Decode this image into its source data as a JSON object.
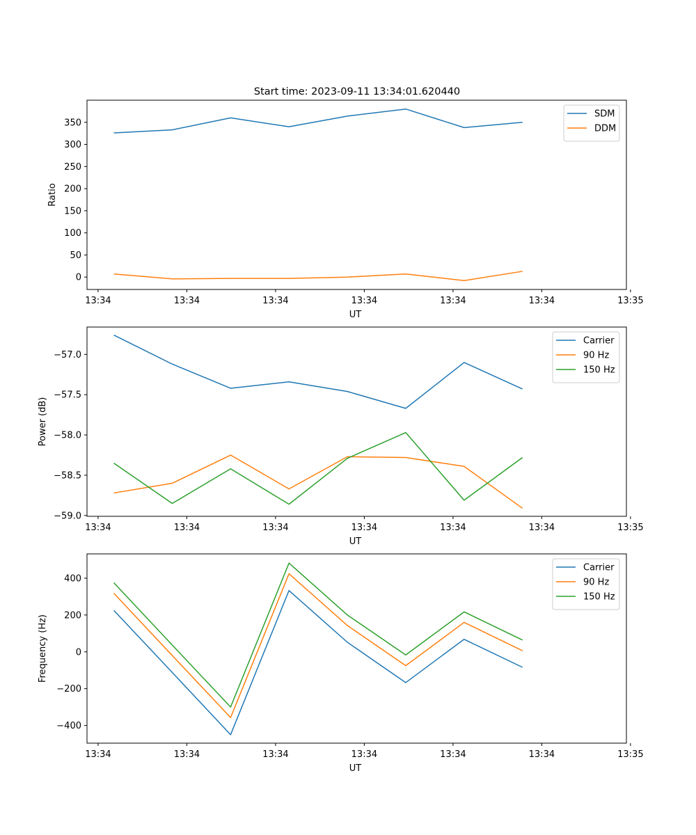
{
  "figure": {
    "title": "Start time: 2023-09-11 13:34:01.620440"
  },
  "colors": {
    "blue": "#1f77b4",
    "orange": "#ff7f0e",
    "green": "#2ca02c"
  },
  "chart_data": [
    {
      "type": "line",
      "xlabel": "UT",
      "ylabel": "Ratio",
      "xlim": [
        -0.46,
        8.78
      ],
      "ylim": [
        -28,
        400
      ],
      "xticks": [
        {
          "x": -0.27,
          "label": "13:34"
        },
        {
          "x": 1.25,
          "label": "13:34"
        },
        {
          "x": 2.77,
          "label": "13:34"
        },
        {
          "x": 4.29,
          "label": "13:34"
        },
        {
          "x": 5.81,
          "label": "13:34"
        },
        {
          "x": 7.33,
          "label": "13:34"
        },
        {
          "x": 8.85,
          "label": "13:35"
        }
      ],
      "yticks": [
        0,
        50,
        100,
        150,
        200,
        250,
        300,
        350
      ],
      "legend_loc": "top-right",
      "x": [
        0,
        1,
        2,
        3,
        4,
        5,
        6,
        7
      ],
      "series": [
        {
          "name": "SDM",
          "color": "blue",
          "values": [
            326,
            333,
            360,
            340,
            364,
            380,
            338,
            350
          ]
        },
        {
          "name": "DDM",
          "color": "orange",
          "values": [
            7,
            -4,
            -3,
            -3,
            0,
            7,
            -8,
            13
          ]
        }
      ]
    },
    {
      "type": "line",
      "xlabel": "UT",
      "ylabel": "Power (dB)",
      "xlim": [
        -0.46,
        8.78
      ],
      "ylim": [
        -59.01,
        -56.66
      ],
      "xticks": [
        {
          "x": -0.27,
          "label": "13:34"
        },
        {
          "x": 1.25,
          "label": "13:34"
        },
        {
          "x": 2.77,
          "label": "13:34"
        },
        {
          "x": 4.29,
          "label": "13:34"
        },
        {
          "x": 5.81,
          "label": "13:34"
        },
        {
          "x": 7.33,
          "label": "13:34"
        },
        {
          "x": 8.85,
          "label": "13:35"
        }
      ],
      "yticks": [
        -59.0,
        -58.5,
        -58.0,
        -57.5,
        -57.0
      ],
      "ytick_labels": [
        "−59.0",
        "−58.5",
        "−58.0",
        "−57.5",
        "−57.0"
      ],
      "legend_loc": "top-right",
      "x": [
        0,
        1,
        2,
        3,
        4,
        5,
        6,
        7
      ],
      "series": [
        {
          "name": "Carrier",
          "color": "blue",
          "values": [
            -56.76,
            -57.12,
            -57.42,
            -57.34,
            -57.46,
            -57.67,
            -57.1,
            -57.43
          ]
        },
        {
          "name": "90 Hz",
          "color": "orange",
          "values": [
            -58.72,
            -58.6,
            -58.25,
            -58.67,
            -58.27,
            -58.28,
            -58.39,
            -58.91
          ]
        },
        {
          "name": "150 Hz",
          "color": "green",
          "values": [
            -58.35,
            -58.85,
            -58.42,
            -58.86,
            -58.29,
            -57.97,
            -58.81,
            -58.28
          ]
        }
      ]
    },
    {
      "type": "line",
      "xlabel": "UT",
      "ylabel": "Frequency (Hz)",
      "xlim": [
        -0.46,
        8.78
      ],
      "ylim": [
        -496,
        532
      ],
      "xticks": [
        {
          "x": -0.27,
          "label": "13:34"
        },
        {
          "x": 1.25,
          "label": "13:34"
        },
        {
          "x": 2.77,
          "label": "13:34"
        },
        {
          "x": 4.29,
          "label": "13:34"
        },
        {
          "x": 5.81,
          "label": "13:34"
        },
        {
          "x": 7.33,
          "label": "13:34"
        },
        {
          "x": 8.85,
          "label": "13:35"
        }
      ],
      "yticks": [
        -400,
        -200,
        0,
        200,
        400
      ],
      "ytick_labels": [
        "−400",
        "−200",
        "0",
        "200",
        "400"
      ],
      "legend_loc": "top-right",
      "x": [
        0,
        1,
        2,
        3,
        4,
        5,
        6,
        7
      ],
      "series": [
        {
          "name": "Carrier",
          "color": "blue",
          "values": [
            225,
            -112,
            -450,
            333,
            52,
            -167,
            68,
            -84
          ]
        },
        {
          "name": "90 Hz",
          "color": "orange",
          "values": [
            318,
            -20,
            -357,
            424,
            143,
            -75,
            160,
            6
          ]
        },
        {
          "name": "150 Hz",
          "color": "green",
          "values": [
            375,
            37,
            -300,
            482,
            200,
            -17,
            217,
            64
          ]
        }
      ]
    }
  ]
}
